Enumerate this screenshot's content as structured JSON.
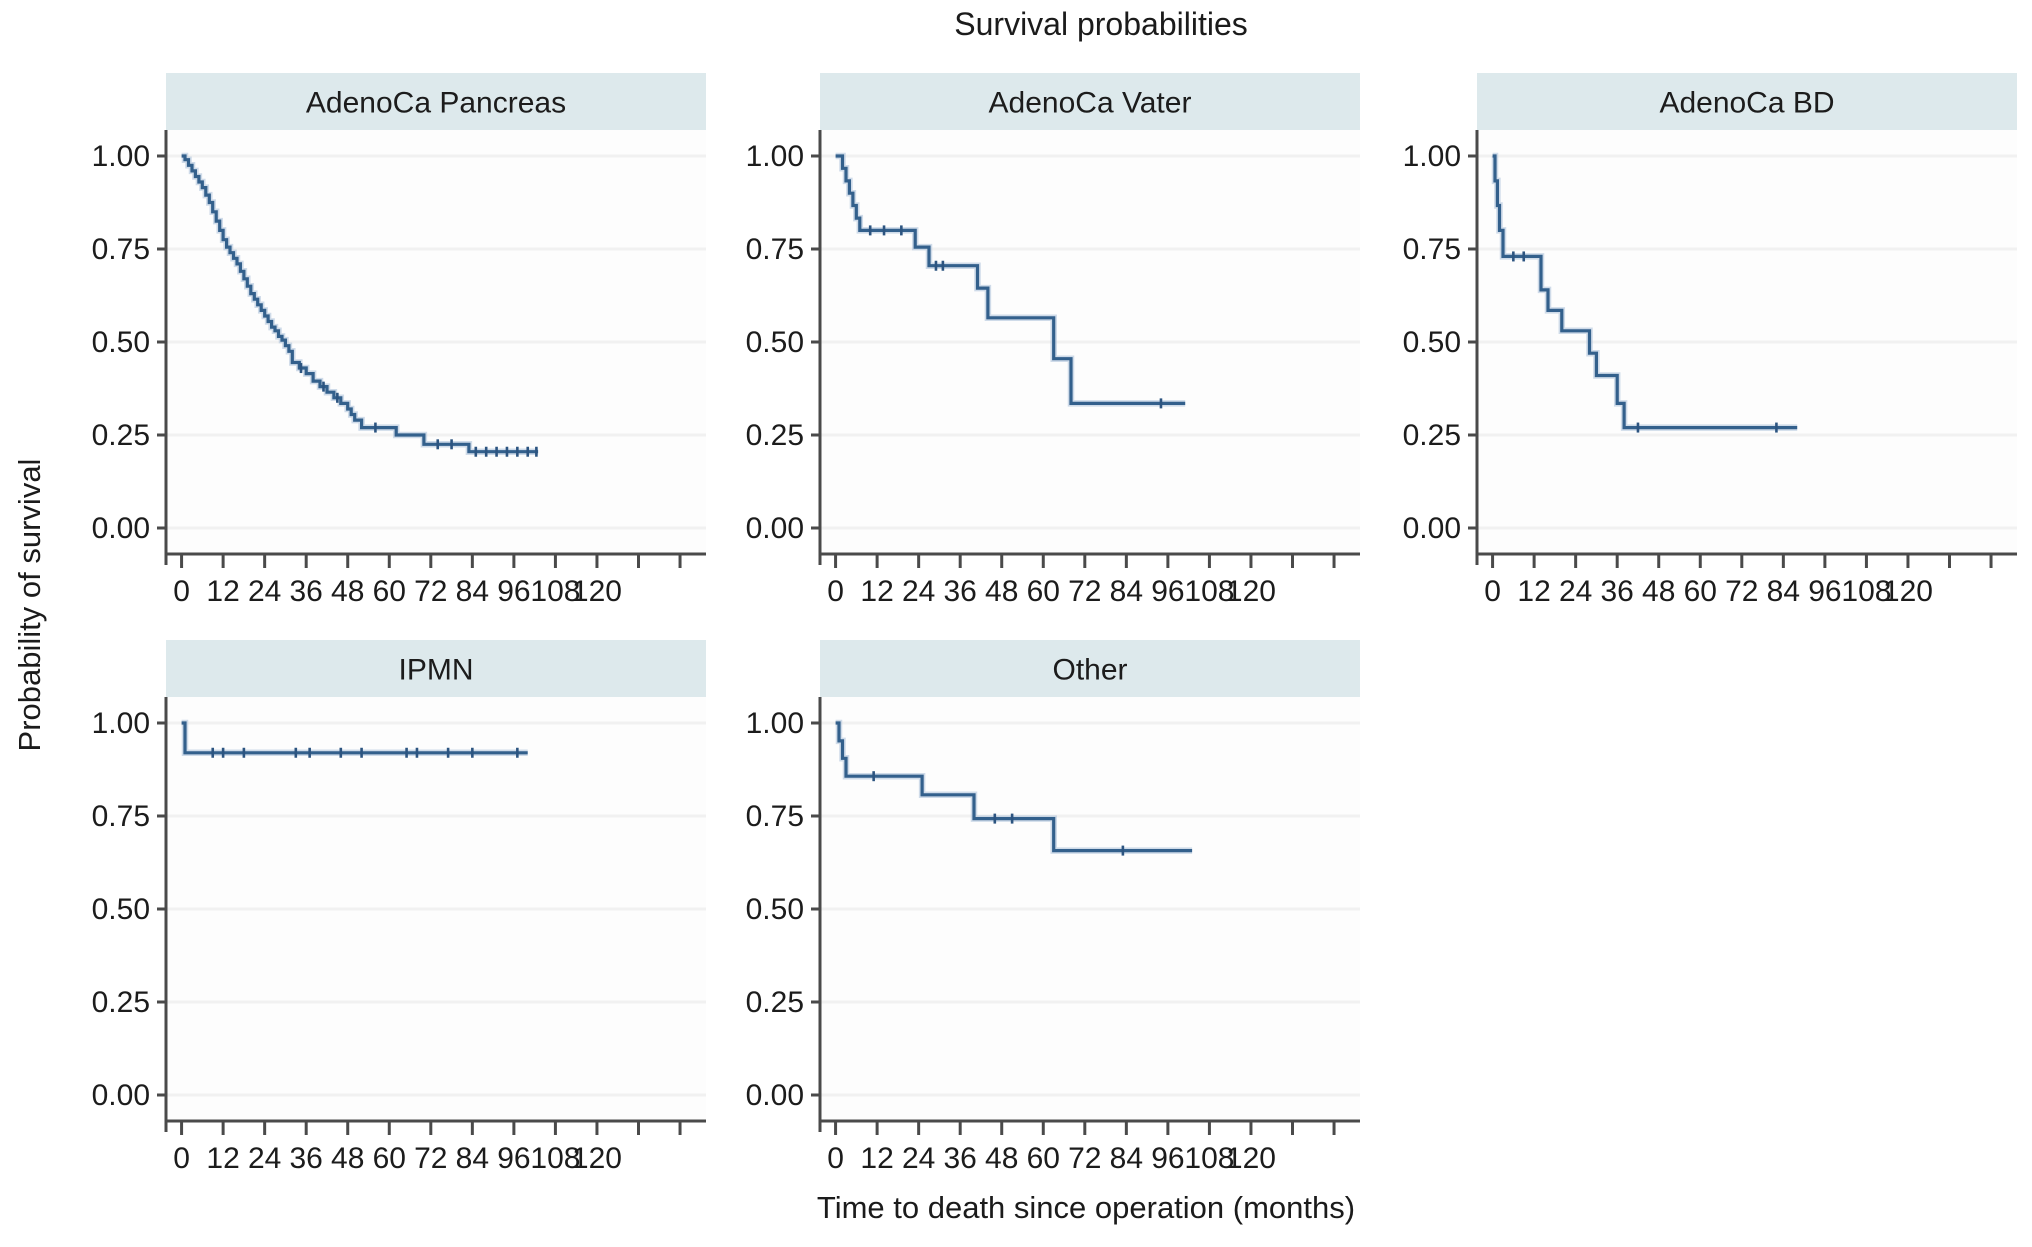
{
  "figure": {
    "title": "Survival probabilities",
    "ylabel": "Probability of survival",
    "xlabel": "Time to death since operation (months)"
  },
  "colors": {
    "curve": "#33608c",
    "curve_halo": "#a9c0d8",
    "censor": "#2c5480",
    "band": "#dde9ec",
    "plot_bg": "#fdfdfd",
    "grid": "#f1f1f1",
    "axis": "#4a4a4a",
    "text": "#1c1c1c"
  },
  "chart_data": {
    "type": "line",
    "subtype": "kaplan-meier-step-facets",
    "title": "Survival probabilities",
    "xlabel": "Time to death since operation (months)",
    "ylabel": "Probability of survival",
    "xlim": [
      0,
      120
    ],
    "ylim": [
      0,
      1
    ],
    "grid": "horizontal-only",
    "legend": "none",
    "x_ticks": [
      0,
      12,
      24,
      36,
      48,
      60,
      72,
      84,
      96,
      108,
      120
    ],
    "x_tick_labels": [
      "0",
      "12",
      "24",
      "36",
      "48",
      "60",
      "72",
      "84",
      "96",
      "108",
      "120"
    ],
    "x_ticks_minor_unlabeled": [
      132,
      144
    ],
    "y_ticks": [
      {
        "v": 1.0,
        "label": "1.00"
      },
      {
        "v": 0.75,
        "label": "0.75"
      },
      {
        "v": 0.5,
        "label": "0.50"
      },
      {
        "v": 0.25,
        "label": "0.25"
      },
      {
        "v": 0.0,
        "label": "0.00"
      }
    ],
    "panels": [
      {
        "id": "adenoca-pancreas",
        "label": "AdenoCa Pancreas",
        "row": 0,
        "col": 0,
        "curve": [
          [
            0,
            1.0
          ],
          [
            1,
            0.99
          ],
          [
            2,
            0.975
          ],
          [
            3,
            0.96
          ],
          [
            4,
            0.945
          ],
          [
            5,
            0.93
          ],
          [
            6,
            0.915
          ],
          [
            7,
            0.895
          ],
          [
            8,
            0.875
          ],
          [
            9,
            0.85
          ],
          [
            10,
            0.825
          ],
          [
            11,
            0.8
          ],
          [
            12,
            0.775
          ],
          [
            13,
            0.755
          ],
          [
            14,
            0.74
          ],
          [
            15,
            0.725
          ],
          [
            16,
            0.71
          ],
          [
            17,
            0.69
          ],
          [
            18,
            0.67
          ],
          [
            19,
            0.65
          ],
          [
            20,
            0.63
          ],
          [
            21,
            0.615
          ],
          [
            22,
            0.6
          ],
          [
            23,
            0.585
          ],
          [
            24,
            0.57
          ],
          [
            25,
            0.555
          ],
          [
            26,
            0.54
          ],
          [
            27,
            0.53
          ],
          [
            28,
            0.515
          ],
          [
            29,
            0.505
          ],
          [
            30,
            0.49
          ],
          [
            31,
            0.475
          ],
          [
            32,
            0.445
          ],
          [
            34,
            0.43
          ],
          [
            36,
            0.415
          ],
          [
            38,
            0.395
          ],
          [
            40,
            0.38
          ],
          [
            42,
            0.365
          ],
          [
            44,
            0.35
          ],
          [
            46,
            0.335
          ],
          [
            48,
            0.32
          ],
          [
            49,
            0.305
          ],
          [
            50,
            0.29
          ],
          [
            52,
            0.27
          ],
          [
            62,
            0.25
          ],
          [
            70,
            0.225
          ],
          [
            83,
            0.205
          ],
          [
            103,
            0.205
          ]
        ],
        "censor_times": [
          34.5,
          41,
          45,
          56,
          74,
          78,
          85,
          88,
          91,
          94,
          97,
          100,
          102.5
        ]
      },
      {
        "id": "adenoca-vater",
        "label": "AdenoCa Vater",
        "row": 0,
        "col": 1,
        "curve": [
          [
            0,
            1.0
          ],
          [
            2,
            0.967
          ],
          [
            3,
            0.933
          ],
          [
            4,
            0.9
          ],
          [
            5,
            0.867
          ],
          [
            6,
            0.833
          ],
          [
            7,
            0.8
          ],
          [
            23,
            0.755
          ],
          [
            27,
            0.705
          ],
          [
            41,
            0.645
          ],
          [
            44,
            0.565
          ],
          [
            63,
            0.455
          ],
          [
            68,
            0.335
          ],
          [
            101,
            0.335
          ]
        ],
        "censor_times": [
          10,
          14,
          19,
          29,
          31,
          94
        ]
      },
      {
        "id": "adenoca-bd",
        "label": "AdenoCa BD",
        "row": 0,
        "col": 2,
        "curve": [
          [
            0,
            1.0
          ],
          [
            0.7,
            0.933
          ],
          [
            1.4,
            0.867
          ],
          [
            2,
            0.8
          ],
          [
            3,
            0.73
          ],
          [
            14,
            0.64
          ],
          [
            16,
            0.585
          ],
          [
            20,
            0.53
          ],
          [
            28,
            0.47
          ],
          [
            30,
            0.41
          ],
          [
            36,
            0.335
          ],
          [
            38,
            0.27
          ],
          [
            88,
            0.27
          ]
        ],
        "censor_times": [
          6,
          9,
          42,
          82
        ]
      },
      {
        "id": "ipmn",
        "label": "IPMN",
        "row": 1,
        "col": 0,
        "curve": [
          [
            0,
            1.0
          ],
          [
            1,
            0.92
          ],
          [
            100,
            0.92
          ]
        ],
        "censor_times": [
          9,
          12,
          18,
          33,
          37,
          46,
          52,
          65,
          68,
          77,
          84,
          97
        ]
      },
      {
        "id": "other",
        "label": "Other",
        "row": 1,
        "col": 1,
        "curve": [
          [
            0,
            1.0
          ],
          [
            1,
            0.952
          ],
          [
            2,
            0.905
          ],
          [
            3,
            0.857
          ],
          [
            25,
            0.807
          ],
          [
            40,
            0.743
          ],
          [
            63,
            0.657
          ],
          [
            103,
            0.657
          ]
        ],
        "censor_times": [
          11,
          46,
          51,
          83
        ]
      }
    ]
  }
}
